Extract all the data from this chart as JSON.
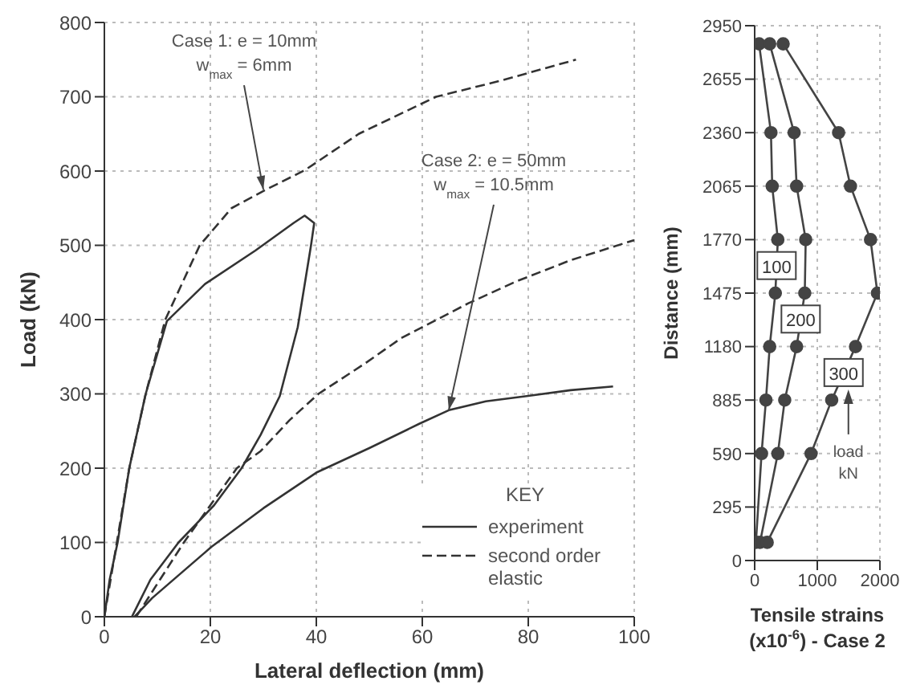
{
  "chart_data": [
    {
      "type": "line",
      "xlabel": "Lateral deflection (mm)",
      "ylabel": "Load (kN)",
      "legend_title": "KEY",
      "legend": "bottom right",
      "grid": true,
      "marker": "none",
      "xlim": [
        0,
        100
      ],
      "xticks": [
        0,
        20,
        40,
        60,
        80,
        100
      ],
      "ylim": [
        0,
        800
      ],
      "yticks": [
        0,
        100,
        200,
        300,
        400,
        500,
        600,
        700,
        800
      ],
      "series": [
        {
          "name": "experiment",
          "color": "#333333",
          "line_style": "solid",
          "x": [
            0,
            1,
            2.5,
            4.7,
            7.8,
            11.8,
            19,
            28.5,
            35.7,
            37.8,
            39.6,
            39,
            36.5,
            33.1,
            29.5,
            25.9,
            20.7,
            14,
            8.7,
            5.2
          ],
          "values": [
            0,
            50,
            100,
            200,
            300,
            398,
            448,
            493,
            530,
            540,
            530,
            500,
            390,
            297,
            245,
            200,
            150,
            100,
            50,
            0
          ]
        },
        {
          "name": "second order elastic",
          "color": "#333333",
          "line_style": "dashed",
          "x": [
            0,
            4.7,
            7.8,
            11.5,
            18,
            24,
            30.5,
            37.8,
            48,
            62.6,
            75,
            89
          ],
          "values": [
            0,
            200,
            300,
            400,
            500,
            550,
            575,
            601,
            650,
            700,
            722,
            750
          ]
        },
        {
          "color": "#333333",
          "line_style": "solid",
          "x": [
            5.7,
            9,
            20.2,
            30,
            40,
            50,
            59.5,
            65,
            72,
            79.7,
            88,
            96
          ],
          "values": [
            0,
            25,
            94,
            146,
            194,
            227,
            260,
            278,
            290,
            297,
            305,
            310
          ]
        },
        {
          "color": "#333333",
          "line_style": "dashed",
          "x": [
            6,
            15,
            25,
            29.5,
            35,
            40.4,
            49.2,
            56,
            68.7,
            77.6,
            88,
            100
          ],
          "values": [
            0,
            100,
            200,
            223,
            265,
            300,
            341,
            375,
            422,
            451,
            480,
            507
          ]
        }
      ],
      "annotations": [
        {
          "text": "Case 1:  e = 10mm\nw$_{max}$ = 6mm",
          "x": 30,
          "y": 575
        },
        {
          "text": "Case 2:  e = 50mm\nw$_{max}$ = 10.5mm",
          "x": 65,
          "y": 278
        }
      ]
    },
    {
      "type": "line",
      "xlabel": "Tensile strains\n(x10$^{-6}$) - Case 2",
      "ylabel": "Distance (mm)",
      "grid": true,
      "marker": "circle",
      "xlim": [
        0,
        2000
      ],
      "xticks": [
        0,
        1000,
        2000
      ],
      "ylim": [
        0,
        2950
      ],
      "yticks": [
        0,
        295,
        590,
        885,
        1180,
        1475,
        1770,
        2065,
        2360,
        2655,
        2950
      ],
      "series": [
        {
          "name": "100",
          "color": "#444444",
          "line_style": "solid",
          "x": [
            20,
            110,
            180,
            240,
            330,
            370,
            280,
            260,
            70
          ],
          "values": [
            100,
            590,
            885,
            1180,
            1475,
            1770,
            2065,
            2360,
            2850
          ]
        },
        {
          "name": "200",
          "color": "#444444",
          "line_style": "solid",
          "x": [
            85,
            370,
            480,
            670,
            800,
            815,
            670,
            630,
            240
          ],
          "values": [
            100,
            590,
            885,
            1180,
            1475,
            1770,
            2065,
            2360,
            2850
          ]
        },
        {
          "name": "300",
          "color": "#444444",
          "line_style": "solid",
          "x": [
            200,
            900,
            1230,
            1610,
            1960,
            1850,
            1530,
            1340,
            455
          ],
          "values": [
            100,
            590,
            885,
            1180,
            1475,
            1770,
            2065,
            2360,
            2850
          ]
        }
      ],
      "annotations": [
        "load\nkN"
      ]
    }
  ]
}
